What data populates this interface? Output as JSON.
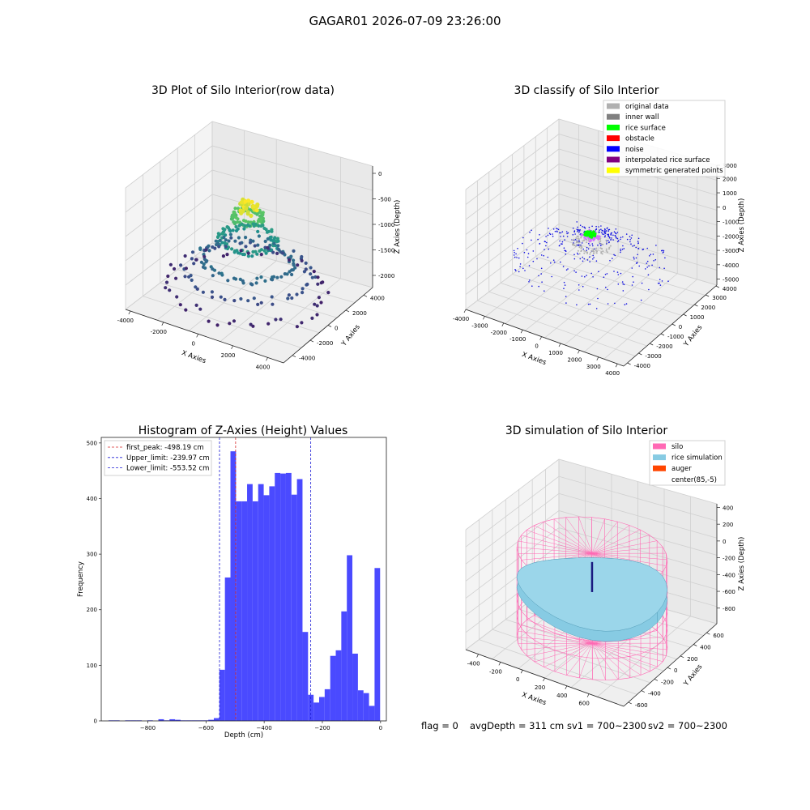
{
  "figure": {
    "suptitle": "GAGAR01 2026-07-09 23:26:00",
    "footer_parts": [
      "flag = 0",
      "avgDepth = 311 cm",
      "sv1 = 700~2300",
      "sv2 = 700~2300"
    ]
  },
  "colors": {
    "hist_bar": "#4a4aff",
    "first_peak": "#d62728",
    "limits": "#1f1fd6",
    "pane_grid": "#d0d0d0",
    "silo": "#ff69b4",
    "rice": "#87cbe3",
    "auger": "#ff4500"
  },
  "chart_data": [
    {
      "type": "scatter",
      "projection": "3d",
      "title": "3D Plot of Silo Interior(row data)",
      "xlabel": "X Axies",
      "ylabel": "Y Axies",
      "zlabel": "Z Axies (Depth)",
      "x_ticks": [
        "-4000",
        "-2000",
        "0",
        "2000",
        "4000"
      ],
      "y_ticks": [
        "-4000",
        "-2000",
        "0",
        "2000",
        "4000"
      ],
      "z_ticks": [
        "-2000",
        "-1500",
        "-1000",
        "-500",
        "0"
      ],
      "xlim": [
        -4800,
        4800
      ],
      "ylim": [
        -4800,
        4800
      ],
      "zlim": [
        -2300,
        100
      ],
      "colormap": "viridis",
      "groups": [
        {
          "description_shape": "ring",
          "center": [
            0,
            0
          ],
          "radius": 800,
          "z": -600,
          "count": 70
        },
        {
          "description_shape": "ring",
          "center": [
            0,
            0
          ],
          "radius": 1500,
          "z": -1050,
          "count": 90
        },
        {
          "description_shape": "ring",
          "center": [
            0,
            0
          ],
          "radius": 2400,
          "z": -1450,
          "count": 80
        },
        {
          "description_shape": "ring",
          "center": [
            0,
            0
          ],
          "radius": 3300,
          "z": -1700,
          "count": 60
        },
        {
          "description_shape": "ring",
          "center": [
            0,
            0
          ],
          "radius": 4200,
          "z": -2000,
          "count": 50
        }
      ]
    },
    {
      "type": "scatter",
      "projection": "3d",
      "title": "3D classify of Silo Interior",
      "xlabel": "X Axies",
      "ylabel": "Y Axies",
      "zlabel": "Z Axies (Depth)",
      "x_ticks": [
        "-4000",
        "-3000",
        "-2000",
        "-1000",
        "0",
        "1000",
        "2000",
        "3000",
        "4000"
      ],
      "y_ticks": [
        "-4000",
        "-3000",
        "-2000",
        "-1000",
        "0",
        "1000",
        "2000",
        "3000",
        "4000"
      ],
      "z_ticks": [
        "-5000",
        "-4000",
        "-3000",
        "-2000",
        "-1000",
        "0",
        "1000",
        "2000",
        "3000"
      ],
      "xlim": [
        -4500,
        4500
      ],
      "ylim": [
        -4500,
        4500
      ],
      "zlim": [
        -5500,
        3500
      ],
      "legend": [
        {
          "label": "original data",
          "color": "#b0b0b0"
        },
        {
          "label": "inner wall",
          "color": "#808080"
        },
        {
          "label": "rice surface",
          "color": "#00ff00"
        },
        {
          "label": "obstacle",
          "color": "#ff0000"
        },
        {
          "label": "noise",
          "color": "#0000ff"
        },
        {
          "label": "interpolated rice surface",
          "color": "#800080"
        },
        {
          "label": "symmetric generated points",
          "color": "#ffff00"
        }
      ]
    },
    {
      "type": "bar",
      "title": "Histogram of Z-Axies (Height) Values",
      "xlabel": "Depth (cm)",
      "ylabel": "Frequency",
      "xlim": [
        -960,
        20
      ],
      "ylim": [
        0,
        510
      ],
      "x_ticks": [
        -800,
        -600,
        -400,
        -200,
        0
      ],
      "y_ticks": [
        0,
        100,
        200,
        300,
        400,
        500
      ],
      "bin_start": -935,
      "bin_width": 19.05,
      "values": [
        1,
        1,
        0,
        1,
        1,
        1,
        0,
        1,
        0,
        3,
        1,
        3,
        2,
        1,
        1,
        1,
        1,
        1,
        2,
        5,
        92,
        258,
        485,
        395,
        395,
        426,
        395,
        426,
        406,
        422,
        446,
        445,
        446,
        407,
        435,
        160,
        47,
        33,
        43,
        57,
        117,
        127,
        197,
        298,
        121,
        55,
        50,
        27,
        275
      ],
      "lines": [
        {
          "label": "first_peak: -498.19 cm",
          "value": -498.19,
          "style": "dashed",
          "color": "#d62728"
        },
        {
          "label": "Upper_limit: -239.97 cm",
          "value": -239.97,
          "style": "dashed",
          "color": "#1f1fd6"
        },
        {
          "label": "Lower_limit: -553.52 cm",
          "value": -553.52,
          "style": "dashed",
          "color": "#1f1fd6"
        }
      ]
    },
    {
      "type": "surface",
      "projection": "3d",
      "title": "3D simulation of Silo Interior",
      "xlabel": "X Axies",
      "ylabel": "Y Axies",
      "zlabel": "Z Axies (Depth)",
      "x_ticks": [
        "-400",
        "-200",
        "0",
        "200",
        "400",
        "600"
      ],
      "y_ticks": [
        "-600",
        "-400",
        "-200",
        "0",
        "200",
        "400",
        "600"
      ],
      "z_ticks": [
        "-800",
        "-600",
        "-400",
        "-200",
        "0",
        "200",
        "400"
      ],
      "xlim": [
        -650,
        800
      ],
      "ylim": [
        -750,
        750
      ],
      "zlim": [
        -950,
        450
      ],
      "silo": {
        "radius": 600,
        "z_bottom": -950,
        "z_top": 100
      },
      "rice_surface_depth": -311,
      "legend": [
        {
          "label": "silo",
          "color": "#ff69b4"
        },
        {
          "label": "rice simulation",
          "color": "#87cbe3"
        },
        {
          "label": "auger",
          "color": "#ff4500"
        },
        {
          "label": "center(85,-5)",
          "color": "#ffffff"
        }
      ]
    }
  ]
}
